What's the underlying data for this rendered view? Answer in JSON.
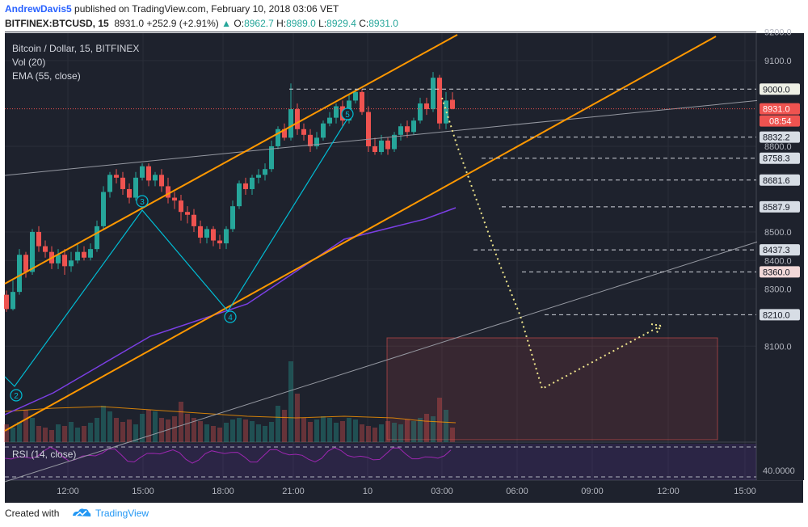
{
  "header": {
    "author": "AndrewDavis5",
    "published": "published on TradingView.com, February 10, 2018 03:06 VET",
    "symbol": "BITFINEX:BTCUSD, 15",
    "last": "8931.0",
    "change": "+252.9 (+2.91%)",
    "o_label": "O:",
    "o": "8962.7",
    "h_label": "H:",
    "h": "8989.0",
    "l_label": "L:",
    "l": "8929.4",
    "c_label": "C:",
    "c": "8931.0"
  },
  "legend": {
    "title": "Bitcoin / Dollar, 15, BITFINEX",
    "vol": "Vol (20)",
    "ema": "EMA (55, close)",
    "rsi": "RSI (14, close)"
  },
  "price_axis": {
    "ticks": [
      "9200.0",
      "9100.0",
      "8800.0",
      "8500.0",
      "8400.0",
      "8300.0",
      "8100.0"
    ],
    "labels": [
      {
        "text": "9000.0",
        "price": 9000,
        "bg": "#eef0e6",
        "fg": "#131722"
      },
      {
        "text": "8931.0",
        "price": 8931,
        "bg": "#ef5350",
        "fg": "#ffffff"
      },
      {
        "text": "8832.2",
        "price": 8832.2,
        "bg": "#d7dde5",
        "fg": "#131722"
      },
      {
        "text": "8758.3",
        "price": 8758.3,
        "bg": "#d7dde5",
        "fg": "#131722"
      },
      {
        "text": "8681.6",
        "price": 8681.6,
        "bg": "#d7dde5",
        "fg": "#131722"
      },
      {
        "text": "8587.9",
        "price": 8587.9,
        "bg": "#d7dde5",
        "fg": "#131722"
      },
      {
        "text": "8437.3",
        "price": 8437.3,
        "bg": "#d7dde5",
        "fg": "#131722"
      },
      {
        "text": "8360.0",
        "price": 8360,
        "bg": "#f2d8d8",
        "fg": "#131722"
      },
      {
        "text": "8210.0",
        "price": 8210,
        "bg": "#d7dde5",
        "fg": "#131722"
      }
    ],
    "countdown": "08:54",
    "rsi_tick": "40.0000"
  },
  "time_axis": {
    "ticks": [
      "12:00",
      "15:00",
      "18:00",
      "21:00",
      "10",
      "03:00",
      "06:00",
      "09:00",
      "12:00",
      "15:00"
    ]
  },
  "waves": [
    "2",
    "3",
    "4",
    "5"
  ],
  "colors": {
    "background": "#1e222d",
    "up": "#26a69a",
    "down": "#ef5350",
    "channel": "#ff9800",
    "ema": "#7b3fe4",
    "wave": "#00bcd4",
    "projection": "#f0e68c",
    "rsi": "#9c27b0"
  },
  "footer": {
    "created": "Created with",
    "brand": "TradingView"
  }
}
